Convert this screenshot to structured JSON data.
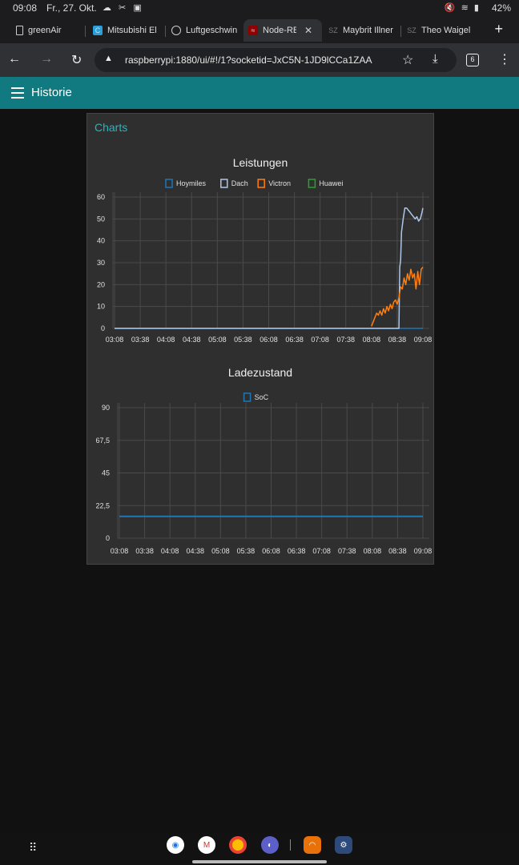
{
  "status_bar": {
    "time": "09:08",
    "date": "Fr., 27. Okt.",
    "battery": "42%"
  },
  "tabs": [
    {
      "label": "greenAir",
      "favicon": "document-icon"
    },
    {
      "label": "Mitsubishi El",
      "favicon": "mitsubishi-icon"
    },
    {
      "label": "Luftgeschwin",
      "favicon": "globe-icon"
    },
    {
      "label": "Node-RED",
      "favicon": "nodered-icon",
      "active": true
    },
    {
      "label": "Maybrit Illner",
      "favicon": "sz-icon"
    },
    {
      "label": "Theo Waigel",
      "favicon": "sz-icon"
    }
  ],
  "address_bar": {
    "url": "raspberrypi:1880/ui/#!/1?socketid=JxC5N-1JD9lCCa1ZAA",
    "tab_count": "6"
  },
  "app_header": {
    "title": "Historie"
  },
  "card": {
    "title": "Charts"
  },
  "chart_data": [
    {
      "type": "line",
      "title": "Leistungen",
      "ylim": [
        0,
        60
      ],
      "y_ticks": [
        "0",
        "10",
        "20",
        "30",
        "40",
        "50",
        "60"
      ],
      "x_ticks": [
        "03:08",
        "03:38",
        "04:08",
        "04:38",
        "05:08",
        "05:38",
        "06:08",
        "06:38",
        "07:08",
        "07:38",
        "08:08",
        "08:38",
        "09:08"
      ],
      "grid": true,
      "legend_position": "top",
      "series": [
        {
          "name": "Hoymiles",
          "color": "#1f77b4",
          "x": [
            "03:08",
            "09:08"
          ],
          "y": [
            0,
            0
          ]
        },
        {
          "name": "Dach",
          "color": "#aec7e8",
          "x": [
            "03:08",
            "08:40",
            "08:41",
            "08:42",
            "08:43",
            "08:45",
            "08:47",
            "08:49",
            "08:51",
            "08:53",
            "08:55",
            "08:57",
            "08:59",
            "09:01",
            "09:03",
            "09:05",
            "09:07",
            "09:08"
          ],
          "y": [
            0,
            0,
            28,
            31,
            44,
            50,
            55,
            55,
            54,
            53,
            52,
            51,
            50,
            51,
            49,
            50,
            53,
            55
          ]
        },
        {
          "name": "Victron",
          "color": "#ff7f0e",
          "x": [
            "08:08",
            "08:10",
            "08:12",
            "08:14",
            "08:16",
            "08:18",
            "08:20",
            "08:22",
            "08:24",
            "08:26",
            "08:28",
            "08:30",
            "08:32",
            "08:34",
            "08:36",
            "08:38",
            "08:40",
            "08:42",
            "08:44",
            "08:46",
            "08:48",
            "08:50",
            "08:52",
            "08:54",
            "08:56",
            "08:58",
            "09:00",
            "09:02",
            "09:04",
            "09:06",
            "09:08"
          ],
          "y": [
            1,
            3,
            5,
            7,
            6,
            8,
            6,
            9,
            7,
            10,
            8,
            11,
            9,
            12,
            13,
            11,
            14,
            19,
            18,
            23,
            20,
            25,
            22,
            27,
            23,
            25,
            18,
            26,
            20,
            27,
            28
          ]
        },
        {
          "name": "Huawei",
          "color": "#2ca02c",
          "x": [],
          "y": []
        }
      ]
    },
    {
      "type": "line",
      "title": "Ladezustand",
      "ylim": [
        0,
        90
      ],
      "y_ticks": [
        "0",
        "22,5",
        "45",
        "67,5",
        "90"
      ],
      "x_ticks": [
        "03:08",
        "03:38",
        "04:08",
        "04:38",
        "05:08",
        "05:38",
        "06:08",
        "06:38",
        "07:08",
        "07:38",
        "08:08",
        "08:38",
        "09:08"
      ],
      "grid": true,
      "legend_position": "top",
      "series": [
        {
          "name": "SoC",
          "color": "#1f77b4",
          "x": [
            "03:08",
            "09:08"
          ],
          "y": [
            15,
            15
          ]
        }
      ]
    }
  ]
}
